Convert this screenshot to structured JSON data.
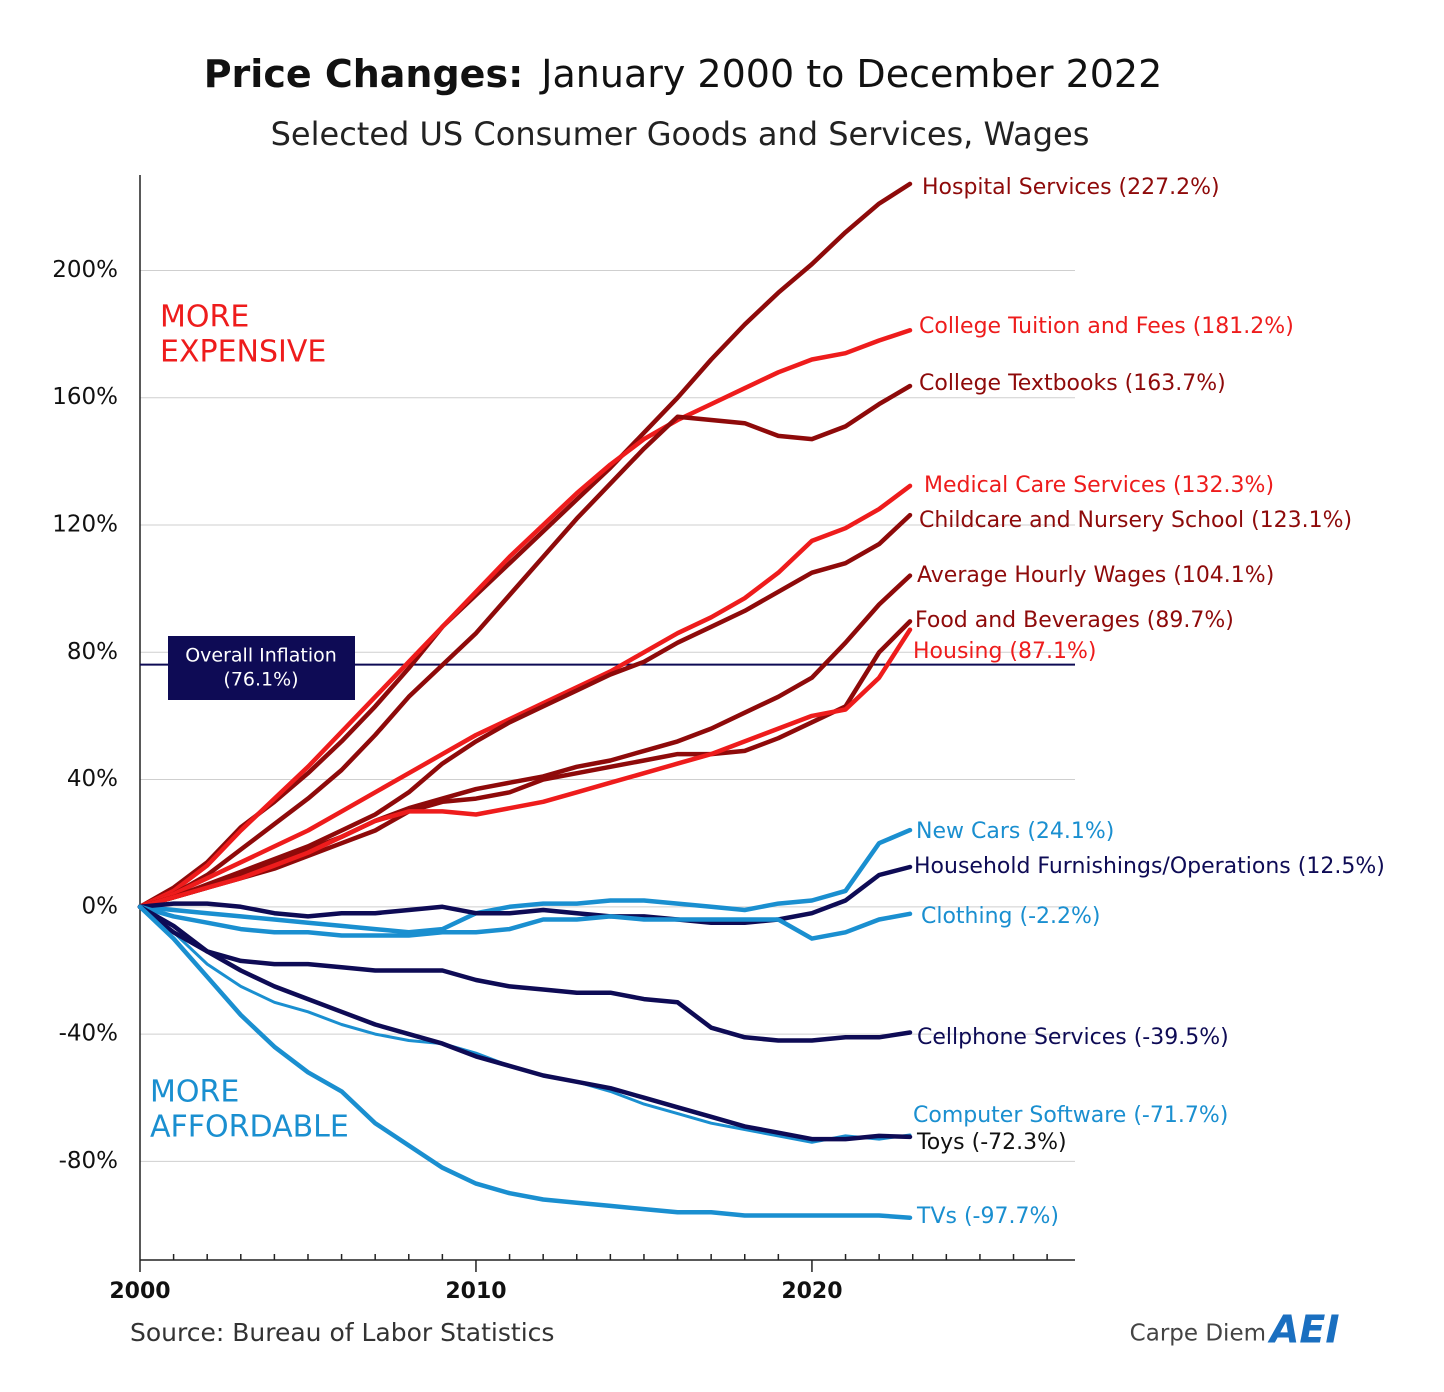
{
  "chart_data": {
    "type": "line",
    "title": "Price Changes:",
    "title_detail": "January 2000 to December 2022",
    "subtitle": "Selected US Consumer Goods and Services, Wages",
    "source": "Source: Bureau of Labor Statistics",
    "brand": "Carpe Diem",
    "logo": "AEI",
    "annotations": [
      {
        "lines": [
          "MORE",
          "EXPENSIVE"
        ],
        "color": "#ee1c1c"
      },
      {
        "lines": [
          "MORE",
          "AFFORDABLE"
        ],
        "color": "#1a8fd0"
      }
    ],
    "reference_line": {
      "value": 76.1,
      "lines": [
        "Overall Inflation",
        "(76.1%)"
      ],
      "color": "#0e0b55"
    },
    "xlim": [
      2000,
      2027.8
    ],
    "xticks": [
      2000,
      2010,
      2020
    ],
    "xminorticks": [
      2001,
      2002,
      2003,
      2004,
      2005,
      2006,
      2007,
      2008,
      2009,
      2011,
      2012,
      2013,
      2014,
      2015,
      2016,
      2017,
      2018,
      2019,
      2021,
      2022,
      2023,
      2024,
      2025,
      2026,
      2027
    ],
    "ylim": [
      -111,
      230
    ],
    "yticks": [
      {
        "value": -80,
        "label": "-80%"
      },
      {
        "value": -40,
        "label": "-40%"
      },
      {
        "value": 0,
        "label": "0%"
      },
      {
        "value": 40,
        "label": "40%"
      },
      {
        "value": 80,
        "label": "80%"
      },
      {
        "value": 120,
        "label": "120%"
      },
      {
        "value": 160,
        "label": "160%"
      },
      {
        "value": 200,
        "label": "200%"
      }
    ],
    "grid": true,
    "x": [
      2000,
      2001,
      2002,
      2003,
      2004,
      2005,
      2006,
      2007,
      2008,
      2009,
      2010,
      2011,
      2012,
      2013,
      2014,
      2015,
      2016,
      2017,
      2018,
      2019,
      2020,
      2021,
      2022,
      2022.92
    ],
    "series": [
      {
        "name": "Hospital Services (227.2%)",
        "color": "#8e0a0a",
        "values": [
          0,
          6,
          14,
          25,
          33,
          42,
          52,
          63,
          75,
          88,
          98,
          108,
          118,
          128,
          138,
          149,
          160,
          172,
          183,
          193,
          202,
          212,
          221,
          227.2
        ]
      },
      {
        "name": "College Tuition and Fees (181.2%)",
        "color": "#ee1c1c",
        "values": [
          0,
          5,
          13,
          24,
          34,
          44,
          55,
          66,
          77,
          88,
          99,
          110,
          120,
          130,
          139,
          147,
          153,
          158,
          163,
          168,
          172,
          174,
          178,
          181.2
        ]
      },
      {
        "name": "College Textbooks (163.7%)",
        "color": "#8e0a0a",
        "values": [
          0,
          4,
          10,
          18,
          26,
          34,
          43,
          54,
          66,
          76,
          86,
          98,
          110,
          122,
          133,
          144,
          154,
          153,
          152,
          148,
          147,
          151,
          158,
          163.7
        ]
      },
      {
        "name": "Medical Care Services (132.3%)",
        "color": "#ee1c1c",
        "values": [
          0,
          4,
          9,
          14,
          19,
          24,
          30,
          36,
          42,
          48,
          54,
          59,
          64,
          69,
          74,
          80,
          86,
          91,
          97,
          105,
          115,
          119,
          125,
          132.3
        ]
      },
      {
        "name": "Childcare and Nursery School (123.1%)",
        "color": "#8e0a0a",
        "values": [
          0,
          3,
          7,
          11,
          15,
          19,
          24,
          29,
          36,
          45,
          52,
          58,
          63,
          68,
          73,
          77,
          83,
          88,
          93,
          99,
          105,
          108,
          114,
          123.1
        ]
      },
      {
        "name": "Average Hourly Wages (104.1%)",
        "color": "#8e0a0a",
        "values": [
          0,
          3,
          6,
          10,
          14,
          18,
          22,
          27,
          31,
          34,
          37,
          39,
          41,
          44,
          46,
          49,
          52,
          56,
          61,
          66,
          72,
          83,
          95,
          104.1
        ]
      },
      {
        "name": "Food and Beverages (89.7%)",
        "color": "#8e0a0a",
        "values": [
          0,
          3,
          6,
          9,
          12,
          16,
          20,
          24,
          30,
          33,
          34,
          36,
          40,
          42,
          44,
          46,
          48,
          48,
          49,
          53,
          58,
          63,
          80,
          89.7
        ]
      },
      {
        "name": "Housing (87.1%)",
        "color": "#ee1c1c",
        "values": [
          0,
          3,
          6,
          9,
          13,
          17,
          22,
          27,
          30,
          30,
          29,
          31,
          33,
          36,
          39,
          42,
          45,
          48,
          52,
          56,
          60,
          62,
          72,
          87.1
        ]
      },
      {
        "name": "New Cars (24.1%)",
        "color": "#1a8fd0",
        "values": [
          0,
          -1,
          -2,
          -3,
          -4,
          -5,
          -6,
          -7,
          -8,
          -7,
          -2,
          0,
          1,
          1,
          2,
          2,
          1,
          0,
          -1,
          1,
          2,
          5,
          20,
          24.1
        ]
      },
      {
        "name": "Household Furnishings/Operations (12.5%)",
        "color": "#0e0b55",
        "values": [
          0,
          1,
          1,
          0,
          -2,
          -3,
          -2,
          -2,
          -1,
          0,
          -2,
          -2,
          -1,
          -2,
          -3,
          -3,
          -4,
          -5,
          -5,
          -4,
          -2,
          2,
          10,
          12.5
        ]
      },
      {
        "name": "Clothing (-2.2%)",
        "color": "#1a8fd0",
        "values": [
          0,
          -3,
          -5,
          -7,
          -8,
          -8,
          -9,
          -9,
          -9,
          -8,
          -8,
          -7,
          -4,
          -4,
          -3,
          -4,
          -4,
          -4,
          -4,
          -4,
          -10,
          -8,
          -4,
          -2.2
        ]
      },
      {
        "name": "Cellphone Services (-39.5%)",
        "color": "#0e0b55",
        "values": [
          0,
          -6,
          -14,
          -17,
          -18,
          -18,
          -19,
          -20,
          -20,
          -20,
          -23,
          -25,
          -26,
          -27,
          -27,
          -29,
          -30,
          -38,
          -41,
          -42,
          -42,
          -41,
          -41,
          -39.5
        ]
      },
      {
        "name": "Computer Software (-71.7%)",
        "color": "#1a8fd0",
        "values": [
          0,
          -8,
          -18,
          -25,
          -30,
          -33,
          -37,
          -40,
          -42,
          -43,
          -46,
          -50,
          -53,
          -55,
          -58,
          -62,
          -65,
          -68,
          -70,
          -72,
          -74,
          -72,
          -73,
          -71.7
        ]
      },
      {
        "name": "Toys (-72.3%)",
        "color": "#0e0b55",
        "values": [
          0,
          -8,
          -14,
          -20,
          -25,
          -29,
          -33,
          -37,
          -40,
          -43,
          -47,
          -50,
          -53,
          -55,
          -57,
          -60,
          -63,
          -66,
          -69,
          -71,
          -73,
          -73,
          -72,
          -72.3
        ]
      },
      {
        "name": "TVs (-97.7%)",
        "color": "#1a8fd0",
        "values": [
          0,
          -10,
          -22,
          -34,
          -44,
          -52,
          -58,
          -68,
          -75,
          -82,
          -87,
          -90,
          -92,
          -93,
          -94,
          -95,
          -96,
          -96,
          -97,
          -97,
          -97,
          -97,
          -97,
          -97.7
        ]
      }
    ]
  }
}
